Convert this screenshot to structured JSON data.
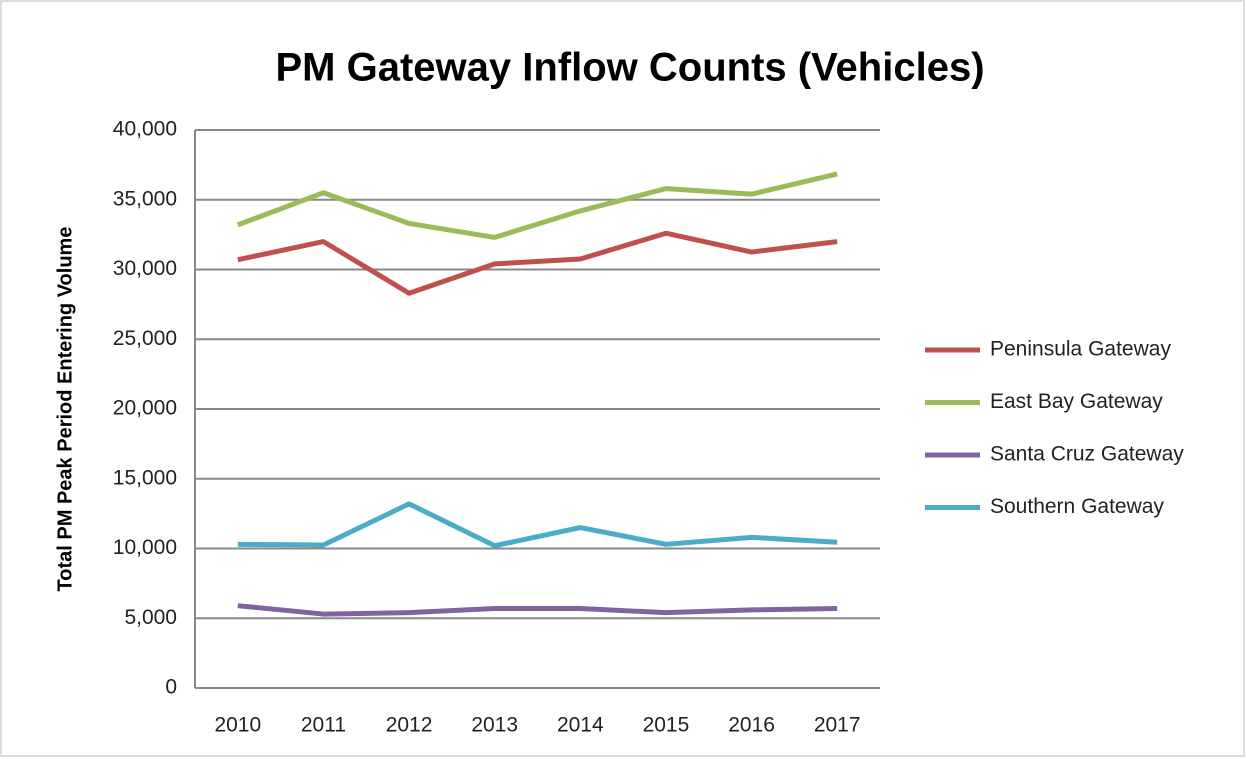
{
  "chart_data": {
    "type": "line",
    "title": "PM Gateway Inflow Counts (Vehicles)",
    "y_label": "Total PM Peak Period Entering Volume",
    "categories": [
      "2010",
      "2011",
      "2012",
      "2013",
      "2014",
      "2015",
      "2016",
      "2017"
    ],
    "series": [
      {
        "name": "Peninsula Gateway",
        "color": "#c0504d",
        "values": [
          30700,
          32000,
          28300,
          30400,
          30750,
          32600,
          31250,
          32000
        ]
      },
      {
        "name": "East Bay Gateway",
        "color": "#9bbb59",
        "values": [
          33200,
          35500,
          33300,
          32300,
          34200,
          35800,
          35400,
          36850
        ]
      },
      {
        "name": "Santa Cruz Gateway",
        "color": "#8064a2",
        "values": [
          5900,
          5300,
          5400,
          5700,
          5700,
          5400,
          5600,
          5700
        ]
      },
      {
        "name": "Southern Gateway",
        "color": "#4bacc6",
        "values": [
          10300,
          10250,
          13200,
          10200,
          11500,
          10300,
          10800,
          10450
        ]
      }
    ],
    "ylim": [
      0,
      40000
    ],
    "yticks": [
      0,
      {
        "value": 5000,
        "label": "5,000"
      },
      {
        "value": 10000,
        "label": "10,000"
      },
      {
        "value": 15000,
        "label": "15,000"
      },
      {
        "value": 20000,
        "label": "20,000"
      },
      {
        "value": 25000,
        "label": "25,000"
      },
      {
        "value": 30000,
        "label": "30,000"
      },
      {
        "value": 35000,
        "label": "35,000"
      },
      {
        "value": 40000,
        "label": "40,000"
      }
    ],
    "grid": true,
    "legend": "right"
  }
}
